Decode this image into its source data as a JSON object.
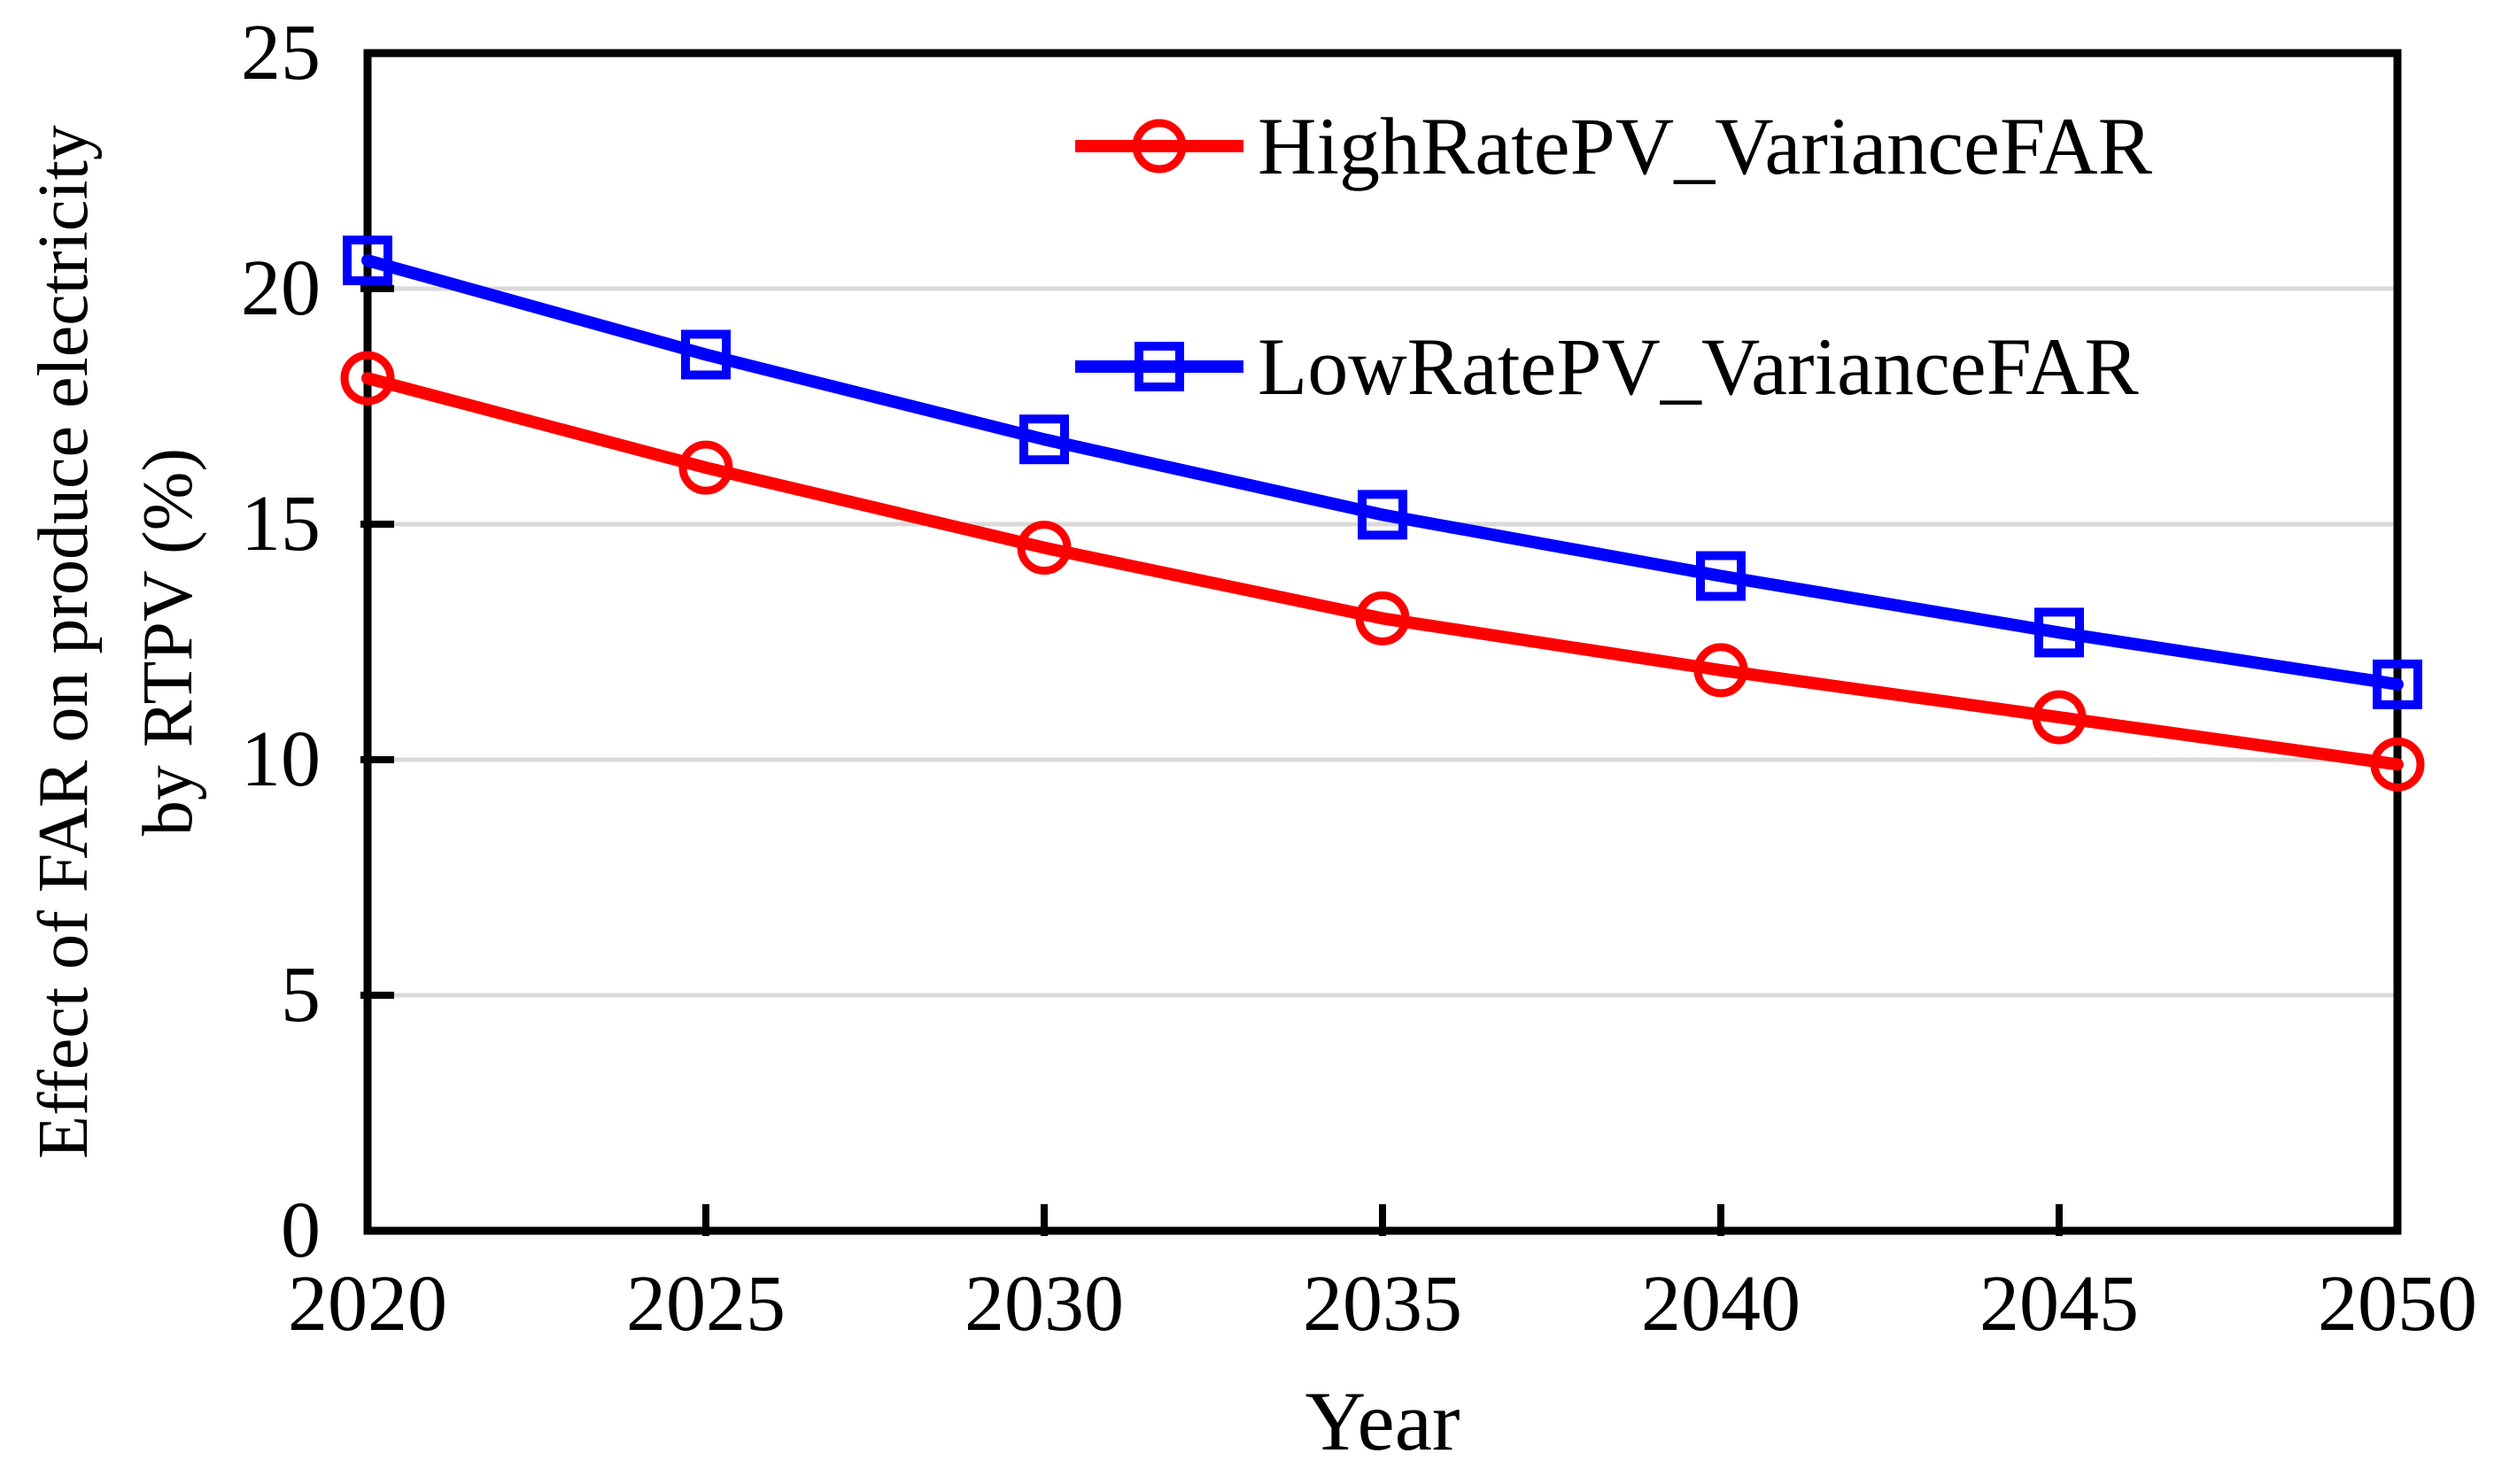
{
  "chart_data": {
    "type": "line",
    "title": "",
    "xlabel": "Year",
    "ylabel": "Effect of FAR on produce electricity by RTPV (%)",
    "ylabel_line1": "Effect of FAR on produce electricity",
    "ylabel_line2": "by RTPV (%)",
    "x": [
      2020,
      2025,
      2030,
      2035,
      2040,
      2045,
      2050
    ],
    "x_tick_labels": [
      "2020",
      "2025",
      "2030",
      "2035",
      "2040",
      "2045",
      "2050"
    ],
    "y_ticks": [
      0,
      5,
      10,
      15,
      20,
      25
    ],
    "y_tick_labels": [
      "0",
      "5",
      "10",
      "15",
      "20",
      "25"
    ],
    "grid_y": [
      5,
      10,
      15,
      20
    ],
    "xlim": [
      2020,
      2050
    ],
    "ylim": [
      0,
      25
    ],
    "grid": "horizontal light-gray lines at 5, 10, 15, 20",
    "legend_position": "upper-right inside plot, no border",
    "series": [
      {
        "name": "HighRatePV_VarianceFAR",
        "color": "#ff0000",
        "marker": "circle",
        "values": [
          18.1,
          16.2,
          14.5,
          13.0,
          11.9,
          10.9,
          9.9
        ]
      },
      {
        "name": "LowRatePV_VarianceFAR",
        "color": "#0000ff",
        "marker": "square",
        "values": [
          20.6,
          18.6,
          16.8,
          15.2,
          13.9,
          12.7,
          11.6
        ]
      }
    ],
    "colors": {
      "grid": "#d9d9d9",
      "axis": "#000000",
      "text": "#000000",
      "background": "#ffffff"
    }
  }
}
